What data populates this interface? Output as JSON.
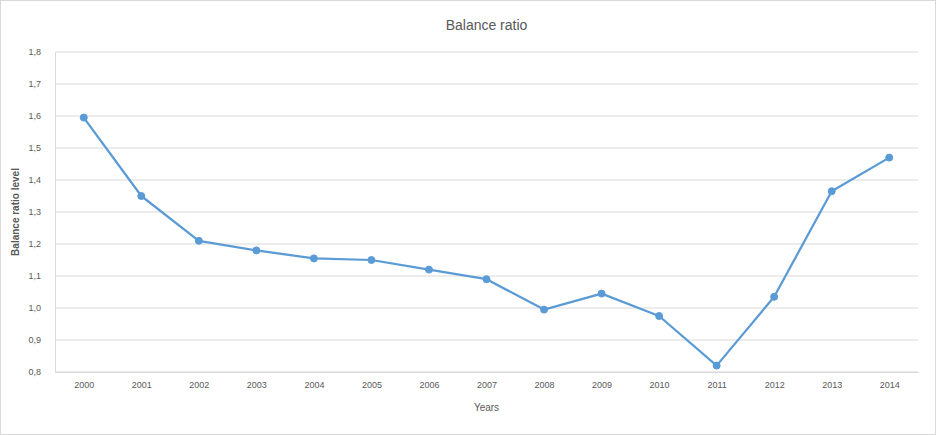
{
  "chart_data": {
    "type": "line",
    "title": "Balance ratio",
    "x_label": "Years",
    "y_label": "Balance ratio level",
    "categories": [
      "2000",
      "2001",
      "2002",
      "2003",
      "2004",
      "2005",
      "2006",
      "2007",
      "2008",
      "2009",
      "2010",
      "2011",
      "2012",
      "2013",
      "2014"
    ],
    "values": [
      1.595,
      1.35,
      1.21,
      1.18,
      1.155,
      1.15,
      1.12,
      1.09,
      0.995,
      1.045,
      0.975,
      0.82,
      1.035,
      1.365,
      1.47
    ],
    "color": "#5b9bd5",
    "marker": "circle",
    "grid": true,
    "ylim": [
      0.8,
      1.8
    ],
    "yticks": [
      {
        "value": 0.8,
        "label": "0,8"
      },
      {
        "value": 0.9,
        "label": "0,9"
      },
      {
        "value": 1.0,
        "label": "1,0"
      },
      {
        "value": 1.1,
        "label": "1,1"
      },
      {
        "value": 1.2,
        "label": "1,2"
      },
      {
        "value": 1.3,
        "label": "1,3"
      },
      {
        "value": 1.4,
        "label": "1,4"
      },
      {
        "value": 1.5,
        "label": "1,5"
      },
      {
        "value": 1.6,
        "label": "1,6"
      },
      {
        "value": 1.7,
        "label": "1,7"
      },
      {
        "value": 1.8,
        "label": "1,8"
      }
    ]
  }
}
